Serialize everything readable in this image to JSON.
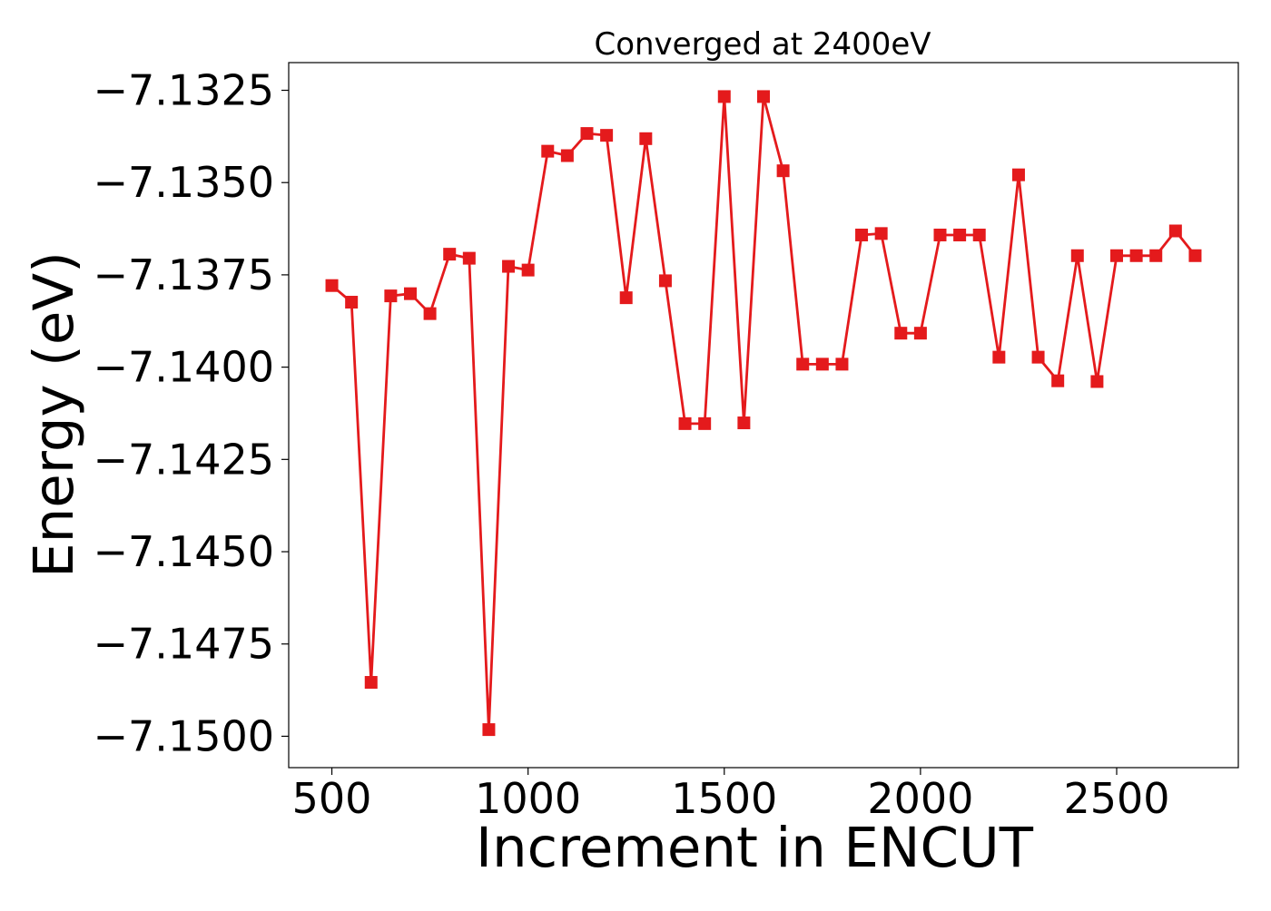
{
  "chart_data": {
    "type": "line",
    "title": "Converged at 2400eV",
    "xlabel": "Increment in ENCUT",
    "ylabel": "Energy (eV)",
    "xlim": [
      390,
      2810
    ],
    "ylim": [
      -7.15085,
      -7.13175
    ],
    "x_ticks": [
      500,
      1000,
      1500,
      2000,
      2500
    ],
    "y_ticks": [
      -7.1325,
      -7.135,
      -7.1375,
      -7.14,
      -7.1425,
      -7.145,
      -7.1475,
      -7.15
    ],
    "grid": false,
    "legend": "none",
    "series_color": "#e41a1c",
    "marker": "square",
    "series": [
      {
        "x": [
          500,
          550,
          600,
          650,
          700,
          750,
          800,
          850,
          900,
          950,
          1000,
          1050,
          1100,
          1150,
          1200,
          1250,
          1300,
          1350,
          1400,
          1450,
          1500,
          1550,
          1600,
          1650,
          1700,
          1750,
          1800,
          1850,
          1900,
          1950,
          2000,
          2050,
          2100,
          2150,
          2200,
          2250,
          2300,
          2350,
          2400,
          2450,
          2500,
          2550,
          2600,
          2650,
          2700
        ],
        "values": [
          -7.13779,
          -7.13824,
          -7.14854,
          -7.13807,
          -7.13801,
          -7.13855,
          -7.13694,
          -7.13705,
          -7.14982,
          -7.13727,
          -7.13737,
          -7.13415,
          -7.13427,
          -7.13367,
          -7.13372,
          -7.13812,
          -7.13381,
          -7.13766,
          -7.14153,
          -7.14153,
          -7.13267,
          -7.14151,
          -7.13267,
          -7.13468,
          -7.13992,
          -7.13992,
          -7.13992,
          -7.13642,
          -7.13638,
          -7.13908,
          -7.13908,
          -7.13642,
          -7.13642,
          -7.13642,
          -7.13973,
          -7.13479,
          -7.13973,
          -7.14037,
          -7.13698,
          -7.14039,
          -7.13698,
          -7.13698,
          -7.13698,
          -7.13631,
          -7.13698
        ]
      }
    ]
  }
}
